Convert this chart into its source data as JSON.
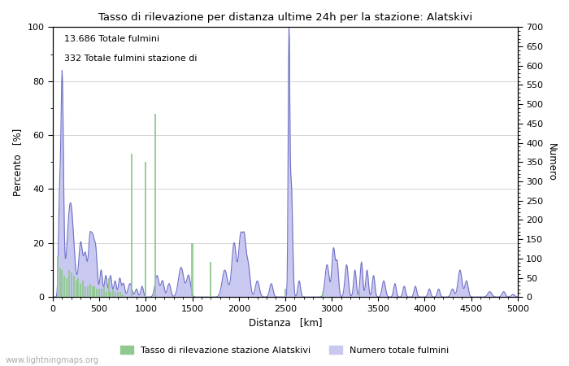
{
  "title": "Tasso di rilevazione per distanza ultime 24h per la stazione: Alatskivi",
  "xlabel": "Distanza   [km]",
  "ylabel_left": "Percento   [%]",
  "ylabel_right": "Numero",
  "annotation_line1": "13.686 Totale fulmini",
  "annotation_line2": "332 Totale fulmini stazione di",
  "legend_label1": "Tasso di rilevazione stazione Alatskivi",
  "legend_label2": "Numero totale fulmini",
  "xlim": [
    0,
    5000
  ],
  "ylim_left": [
    0,
    100
  ],
  "ylim_right": [
    0,
    700
  ],
  "xticks": [
    0,
    500,
    1000,
    1500,
    2000,
    2500,
    3000,
    3500,
    4000,
    4500,
    5000
  ],
  "yticks_left": [
    0,
    20,
    40,
    60,
    80,
    100
  ],
  "yticks_right": [
    0,
    50,
    100,
    150,
    200,
    250,
    300,
    350,
    400,
    450,
    500,
    550,
    600,
    650,
    700
  ],
  "green_color": "#90c890",
  "blue_fill_color": "#c8c8f0",
  "blue_line_color": "#7070c8",
  "bg_color": "#ffffff",
  "grid_color": "#c0c0c0",
  "watermark": "www.lightningmaps.org",
  "watermark_color": "#aaaaaa",
  "figsize": [
    7.0,
    4.5
  ],
  "dpi": 100
}
